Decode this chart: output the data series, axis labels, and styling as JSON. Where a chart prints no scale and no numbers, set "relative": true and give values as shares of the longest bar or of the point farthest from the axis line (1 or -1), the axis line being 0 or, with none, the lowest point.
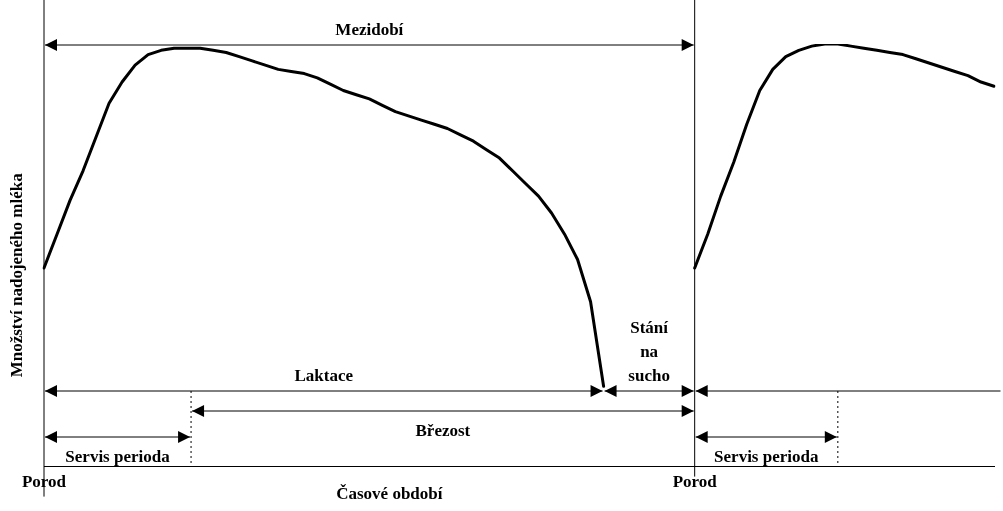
{
  "chart_data": {
    "type": "line",
    "xlabel": "Časové období",
    "ylabel": "Množství nadojeného mléka",
    "relative": true,
    "marker": "none",
    "line_style": "solid",
    "categories": [
      "Porod",
      null,
      null,
      null,
      null,
      null,
      null,
      null,
      null,
      null,
      null,
      null,
      null,
      null,
      null,
      null,
      null,
      null,
      null,
      null,
      null,
      null,
      null,
      null,
      null,
      null,
      null,
      null,
      null,
      null,
      null,
      null,
      null,
      null,
      null,
      null,
      null,
      null,
      null,
      null,
      null,
      null,
      null,
      null,
      null,
      null,
      null,
      null,
      null,
      null,
      "Porod",
      null,
      null,
      null,
      null,
      null,
      null,
      null,
      null,
      null,
      null,
      null,
      null,
      null,
      null,
      null,
      null,
      null,
      null,
      null,
      null,
      null,
      null,
      null
    ],
    "series": [
      {
        "color": "#000000",
        "values": [
          0.47,
          0.55,
          0.63,
          0.7,
          0.78,
          0.86,
          0.91,
          0.95,
          0.975,
          0.985,
          0.99,
          0.99,
          0.99,
          0.985,
          0.98,
          0.97,
          0.96,
          0.95,
          0.94,
          0.935,
          0.93,
          0.92,
          0.905,
          0.89,
          0.88,
          0.87,
          0.855,
          0.84,
          0.83,
          0.82,
          0.81,
          0.8,
          0.785,
          0.77,
          0.75,
          0.73,
          0.7,
          0.67,
          0.64,
          0.6,
          0.55,
          0.49,
          0.39,
          0.19,
          null,
          null,
          null,
          null,
          null,
          null,
          0.47,
          0.55,
          0.64,
          0.72,
          0.81,
          0.89,
          0.94,
          0.97,
          0.985,
          0.995,
          1.0,
          1.0,
          0.995,
          0.99,
          0.985,
          0.98,
          0.975,
          0.965,
          0.955,
          0.945,
          0.935,
          0.925,
          0.91,
          0.9
        ]
      }
    ],
    "annotations": [
      "Mezidobí",
      "Laktace",
      "Stání na sucho",
      "Březost",
      "Servis perioda",
      "Servis perioda"
    ]
  }
}
